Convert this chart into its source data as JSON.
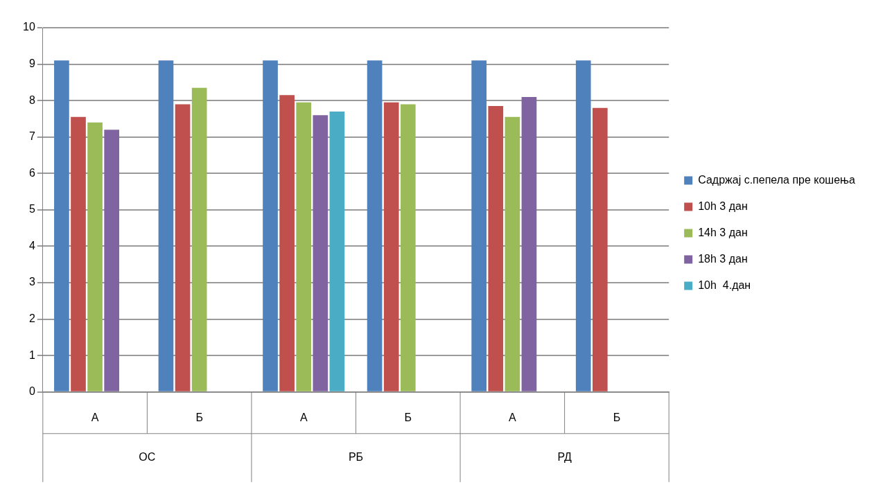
{
  "chart_data": {
    "type": "bar",
    "categories": [
      "А",
      "Б",
      "А",
      "Б",
      "А",
      "Б"
    ],
    "series": [
      {
        "name": "Садржај с.пепела пре кошења",
        "color": "#4f81bd",
        "values": [
          9.1,
          9.1,
          9.1,
          9.1,
          9.1,
          9.1
        ]
      },
      {
        "name": "10h 3 дан",
        "color": "#c0504d",
        "values": [
          7.55,
          7.9,
          8.15,
          7.95,
          7.85,
          7.8
        ]
      },
      {
        "name": "14h 3 дан",
        "color": "#9bbb59",
        "values": [
          7.4,
          8.35,
          7.95,
          7.9,
          7.55,
          null
        ]
      },
      {
        "name": "18h 3 дан",
        "color": "#8064a2",
        "values": [
          7.2,
          null,
          7.6,
          null,
          8.1,
          null
        ]
      },
      {
        "name": "10h  4.дан",
        "color": "#4bacc6",
        "values": [
          null,
          null,
          7.7,
          null,
          null,
          null
        ]
      }
    ],
    "annotations": [
      "ОС",
      "РБ",
      "РД"
    ],
    "ylim": [
      0,
      10
    ],
    "yticks": [
      0,
      1,
      2,
      3,
      4,
      5,
      6,
      7,
      8,
      9,
      10
    ],
    "grid": "y",
    "legend": "right"
  }
}
